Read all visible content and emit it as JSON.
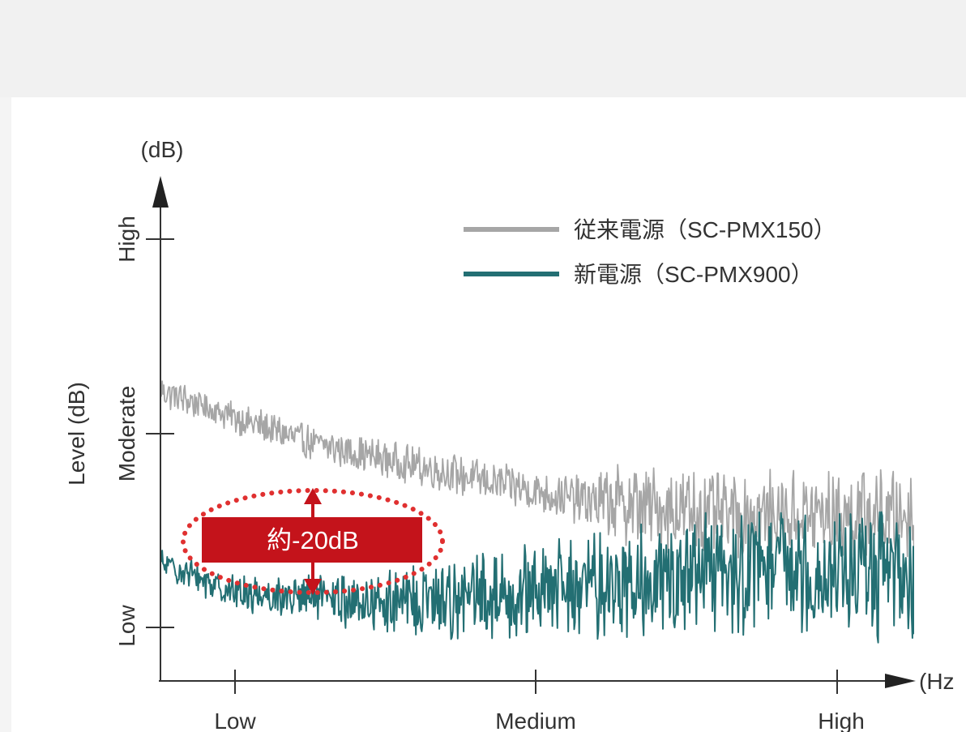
{
  "chart_data": {
    "type": "line",
    "y_axis_unit": "(dB)",
    "x_axis_unit": "(Hz",
    "ylabel": "Level (dB)",
    "y_ticks": [
      "Low",
      "Moderate",
      "High"
    ],
    "x_ticks": [
      "Low",
      "Medium",
      "High"
    ],
    "x_range": [
      0,
      1
    ],
    "y_range": [
      0,
      2
    ],
    "legend_position": "top-right",
    "annotation": "約-20dB",
    "series": [
      {
        "name": "従来電源（SC-PMX150）",
        "color": "#a6a6a6",
        "trend": [
          [
            0.0,
            1.22
          ],
          [
            0.1,
            1.08
          ],
          [
            0.2,
            0.95
          ],
          [
            0.4,
            0.78
          ],
          [
            0.55,
            0.66
          ],
          [
            0.75,
            0.58
          ],
          [
            1.0,
            0.58
          ]
        ],
        "noise_amplitude": [
          [
            0.0,
            0.07
          ],
          [
            0.3,
            0.08
          ],
          [
            0.55,
            0.1
          ],
          [
            0.62,
            0.18
          ],
          [
            1.0,
            0.2
          ]
        ]
      },
      {
        "name": "新電源（SC-PMX900）",
        "color": "#236f73",
        "trend": [
          [
            0.0,
            0.33
          ],
          [
            0.1,
            0.18
          ],
          [
            0.3,
            0.12
          ],
          [
            0.6,
            0.22
          ],
          [
            0.8,
            0.3
          ],
          [
            1.0,
            0.28
          ]
        ],
        "noise_amplitude": [
          [
            0.0,
            0.06
          ],
          [
            0.2,
            0.1
          ],
          [
            0.4,
            0.18
          ],
          [
            0.65,
            0.25
          ],
          [
            1.0,
            0.3
          ]
        ]
      }
    ]
  },
  "colors": {
    "background": "#f1f1f1",
    "plot_background": "#ffffff",
    "axis": "#333333",
    "annotation_fill": "#c4131b",
    "annotation_dots": "#e03030",
    "annotation_text": "#ffffff"
  }
}
